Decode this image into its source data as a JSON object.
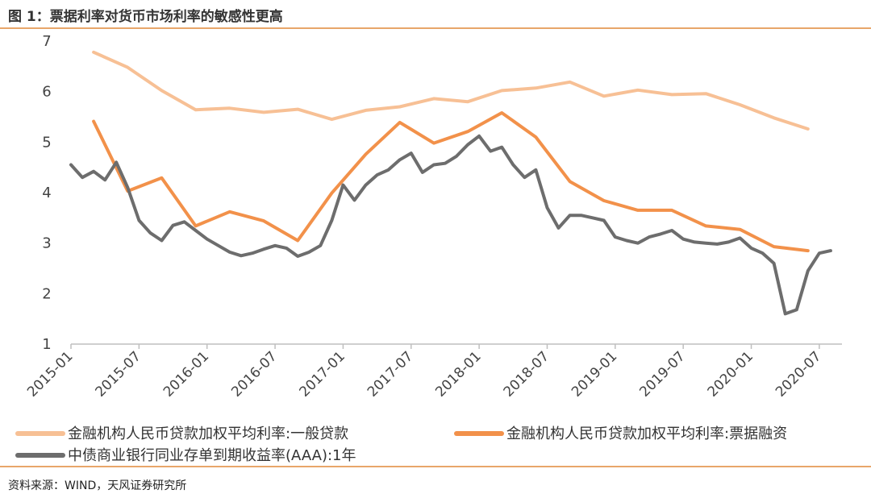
{
  "title": "图 1：票据利率对货币市场利率的敏感性更高",
  "source": "资料来源：WIND，天风证券研究所",
  "colors": {
    "accent_rule": "#E8A66A",
    "general_loan": "#F7C095",
    "bill_financing": "#F2914A",
    "ncd_yield": "#6D6D6D"
  },
  "chart_data": {
    "type": "line",
    "title": "票据利率对货币市场利率的敏感性更高",
    "xlabel": "",
    "ylabel": "",
    "ylim": [
      1,
      7
    ],
    "yticks": [
      "1",
      "2",
      "3",
      "4",
      "5",
      "6",
      "7"
    ],
    "xlim": [
      "2015-01",
      "2020-09"
    ],
    "xticks": [
      "2015-01",
      "2015-07",
      "2016-01",
      "2016-07",
      "2017-01",
      "2017-07",
      "2018-01",
      "2018-07",
      "2019-01",
      "2019-07",
      "2020-01",
      "2020-07"
    ],
    "grid": false,
    "legend": "bottom",
    "series": [
      {
        "name": "金融机构人民币贷款加权平均利率:一般贷款",
        "color": "#F7C095",
        "x": [
          "2015-03",
          "2015-06",
          "2015-09",
          "2015-12",
          "2016-03",
          "2016-06",
          "2016-09",
          "2016-12",
          "2017-03",
          "2017-06",
          "2017-09",
          "2017-12",
          "2018-03",
          "2018-06",
          "2018-09",
          "2018-12",
          "2019-03",
          "2019-06",
          "2019-09",
          "2019-12",
          "2020-03",
          "2020-06"
        ],
        "values": [
          6.78,
          6.48,
          6.02,
          5.64,
          5.67,
          5.59,
          5.65,
          5.45,
          5.63,
          5.7,
          5.86,
          5.8,
          6.02,
          6.07,
          6.19,
          5.91,
          6.03,
          5.94,
          5.96,
          5.74,
          5.48,
          5.26
        ]
      },
      {
        "name": "金融机构人民币贷款加权平均利率:票据融资",
        "color": "#F2914A",
        "x": [
          "2015-03",
          "2015-06",
          "2015-09",
          "2015-12",
          "2016-03",
          "2016-06",
          "2016-09",
          "2016-12",
          "2017-03",
          "2017-06",
          "2017-09",
          "2017-12",
          "2018-03",
          "2018-06",
          "2018-09",
          "2018-12",
          "2019-03",
          "2019-06",
          "2019-09",
          "2019-12",
          "2020-03",
          "2020-06"
        ],
        "values": [
          5.41,
          4.03,
          4.29,
          3.34,
          3.62,
          3.44,
          3.05,
          3.99,
          4.76,
          5.39,
          4.98,
          5.21,
          5.58,
          5.1,
          4.22,
          3.84,
          3.65,
          3.65,
          3.34,
          3.27,
          2.93,
          2.85
        ]
      },
      {
        "name": "中债商业银行同业存单到期收益率(AAA):1年",
        "color": "#6D6D6D",
        "x": [
          "2015-01",
          "2015-02",
          "2015-03",
          "2015-04",
          "2015-05",
          "2015-06",
          "2015-07",
          "2015-08",
          "2015-09",
          "2015-10",
          "2015-11",
          "2015-12",
          "2016-01",
          "2016-02",
          "2016-03",
          "2016-04",
          "2016-05",
          "2016-06",
          "2016-07",
          "2016-08",
          "2016-09",
          "2016-10",
          "2016-11",
          "2016-12",
          "2017-01",
          "2017-02",
          "2017-03",
          "2017-04",
          "2017-05",
          "2017-06",
          "2017-07",
          "2017-08",
          "2017-09",
          "2017-10",
          "2017-11",
          "2017-12",
          "2018-01",
          "2018-02",
          "2018-03",
          "2018-04",
          "2018-05",
          "2018-06",
          "2018-07",
          "2018-08",
          "2018-09",
          "2018-10",
          "2018-11",
          "2018-12",
          "2019-01",
          "2019-02",
          "2019-03",
          "2019-04",
          "2019-05",
          "2019-06",
          "2019-07",
          "2019-08",
          "2019-09",
          "2019-10",
          "2019-11",
          "2019-12",
          "2020-01",
          "2020-02",
          "2020-03",
          "2020-04",
          "2020-05",
          "2020-06",
          "2020-07",
          "2020-08"
        ],
        "values": [
          4.55,
          4.3,
          4.42,
          4.25,
          4.6,
          4.1,
          3.45,
          3.2,
          3.05,
          3.35,
          3.42,
          3.25,
          3.08,
          2.95,
          2.82,
          2.75,
          2.8,
          2.88,
          2.95,
          2.9,
          2.74,
          2.82,
          2.95,
          3.45,
          4.15,
          3.85,
          4.15,
          4.35,
          4.45,
          4.65,
          4.78,
          4.4,
          4.55,
          4.58,
          4.72,
          4.95,
          5.12,
          4.82,
          4.9,
          4.55,
          4.3,
          4.45,
          3.7,
          3.3,
          3.55,
          3.55,
          3.5,
          3.45,
          3.12,
          3.05,
          3.0,
          3.12,
          3.18,
          3.25,
          3.08,
          3.02,
          3.0,
          2.98,
          3.02,
          3.1,
          2.9,
          2.8,
          2.6,
          1.6,
          1.68,
          2.45,
          2.8,
          2.85
        ]
      }
    ]
  }
}
